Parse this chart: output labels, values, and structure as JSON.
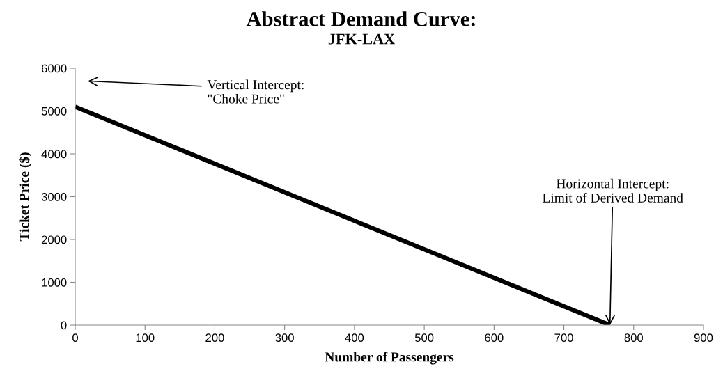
{
  "chart_data": {
    "type": "line",
    "title": "Abstract Demand Curve:",
    "subtitle": "JFK-LAX",
    "xlabel": "Number of Passengers",
    "ylabel": "Ticket Price ($)",
    "x": [
      0,
      766
    ],
    "series": [
      {
        "color": "#000000",
        "values": [
          5100,
          0
        ]
      }
    ],
    "xlim": [
      0,
      900
    ],
    "ylim": [
      0,
      6000
    ],
    "xticks": [
      0,
      100,
      200,
      300,
      400,
      500,
      600,
      700,
      800,
      900
    ],
    "yticks": [
      0,
      1000,
      2000,
      3000,
      4000,
      5000,
      6000
    ],
    "grid": false,
    "legend": false,
    "marker": "none",
    "line_style": "solid",
    "annotations": [
      "Vertical Intercept:\n\"Choke Price\"",
      {
        "text": "Horizontal Intercept:\nLimit of Derived Demand",
        "x": 766,
        "y": 0
      }
    ]
  }
}
